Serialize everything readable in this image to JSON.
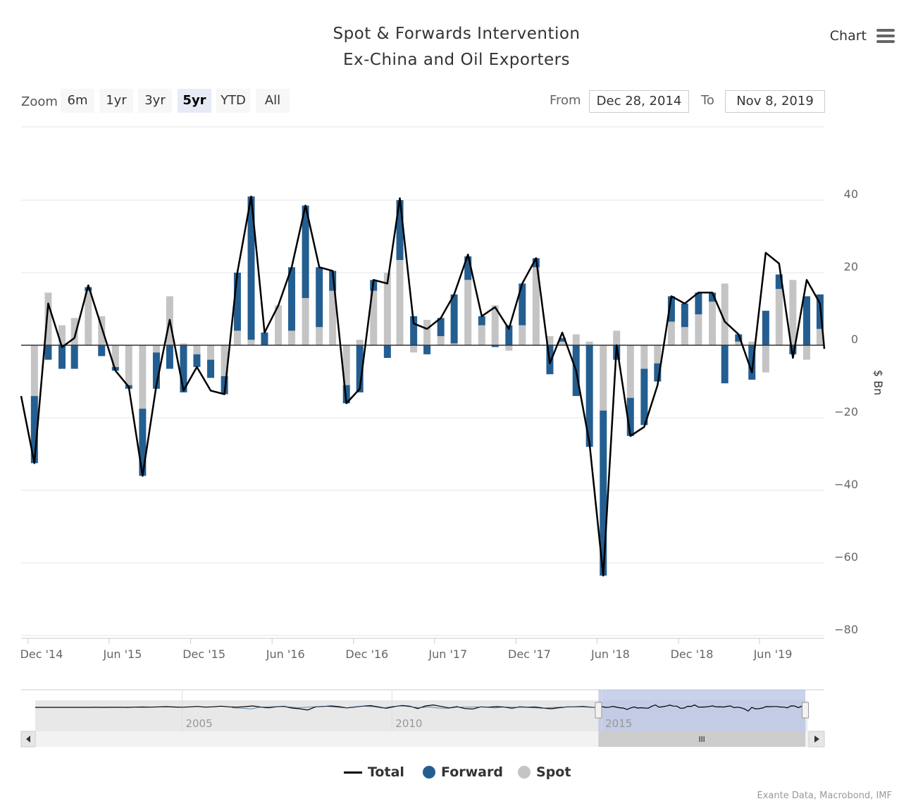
{
  "title": {
    "line1": "Spot & Forwards Intervention",
    "line2": "Ex-China and Oil Exporters"
  },
  "menu": {
    "label": "Chart",
    "icon": "hamburger-menu-icon"
  },
  "range_selector": {
    "zoom_label": "Zoom",
    "buttons": [
      "6m",
      "1yr",
      "3yr",
      "5yr",
      "YTD",
      "All"
    ],
    "selected": "5yr",
    "from_label": "From",
    "from_value": "Dec 28, 2014",
    "to_label": "To",
    "to_value": "Nov 8, 2019"
  },
  "legend": {
    "total": "Total",
    "forward": "Forward",
    "spot": "Spot"
  },
  "credits": "Exante Data, Macrobond, IMF",
  "colors": {
    "forward": "#245e91",
    "spot": "#c4c4c4",
    "total": "#000000",
    "navigator_mask": "#b7c2e4",
    "zoom_selected": "#e6ebf5"
  },
  "chart_data": {
    "type": "bar",
    "stacking": "stacked",
    "y_axis": {
      "title": "$ Bn",
      "ticks": [
        40,
        20,
        0,
        -20,
        -40,
        -60,
        -80
      ],
      "tick_labels": [
        "40",
        "20",
        "0",
        "−20",
        "−40",
        "−60",
        "−80"
      ],
      "range": [
        -80,
        41
      ],
      "position": "right",
      "grid": true
    },
    "x_axis": {
      "range": [
        "2014-11-01",
        "2019-10-31"
      ],
      "ticks": [
        {
          "date": "2014-12-01",
          "label": "Dec '14"
        },
        {
          "date": "2015-06-01",
          "label": "Jun '15"
        },
        {
          "date": "2015-12-01",
          "label": "Dec '15"
        },
        {
          "date": "2016-06-01",
          "label": "Jun '16"
        },
        {
          "date": "2016-12-01",
          "label": "Dec '16"
        },
        {
          "date": "2017-06-01",
          "label": "Jun '17"
        },
        {
          "date": "2017-12-01",
          "label": "Dec '17"
        },
        {
          "date": "2018-06-01",
          "label": "Jun '18"
        },
        {
          "date": "2018-12-01",
          "label": "Dec '18"
        },
        {
          "date": "2019-06-01",
          "label": "Jun '19"
        }
      ]
    },
    "categories": [
      "2014-12",
      "2015-01",
      "2015-02",
      "2015-03",
      "2015-04",
      "2015-05",
      "2015-06",
      "2015-07",
      "2015-08",
      "2015-09",
      "2015-10",
      "2015-11",
      "2015-12",
      "2016-01",
      "2016-02",
      "2016-03",
      "2016-04",
      "2016-05",
      "2016-06",
      "2016-07",
      "2016-08",
      "2016-09",
      "2016-10",
      "2016-11",
      "2016-12",
      "2017-01",
      "2017-02",
      "2017-03",
      "2017-04",
      "2017-05",
      "2017-06",
      "2017-07",
      "2017-08",
      "2017-09",
      "2017-10",
      "2017-11",
      "2017-12",
      "2018-01",
      "2018-02",
      "2018-03",
      "2018-04",
      "2018-05",
      "2018-06",
      "2018-07",
      "2018-08",
      "2018-09",
      "2018-10",
      "2018-11",
      "2018-12",
      "2019-01",
      "2019-02",
      "2019-03",
      "2019-04",
      "2019-05",
      "2019-06",
      "2019-07",
      "2019-08",
      "2019-09",
      "2019-10"
    ],
    "series": [
      {
        "name": "Spot",
        "values": [
          -14,
          14.5,
          5.5,
          7.5,
          15,
          8,
          -6,
          -11,
          -17.5,
          -2,
          13.5,
          0.5,
          -2.5,
          -4,
          -8.5,
          4,
          1.5,
          0,
          11,
          4,
          13,
          5,
          15,
          -11,
          1.5,
          15,
          20,
          23.5,
          -2,
          7,
          2.5,
          0.5,
          18,
          5.5,
          11,
          -1.5,
          5.5,
          21.5,
          2.5,
          1,
          3,
          1,
          -18,
          4,
          -14.5,
          -6.5,
          -5,
          6.5,
          5,
          8.5,
          12,
          17,
          1,
          1,
          -7.5,
          15.5,
          18,
          -4,
          4.5
        ],
        "spot_vs_forward": "spot"
      },
      {
        "name": "Forward",
        "values": [
          -18.5,
          -4,
          -6.5,
          -6.5,
          1,
          -3,
          -1,
          -1,
          -18.5,
          -10,
          -6.5,
          -13,
          -3.5,
          -5,
          -5,
          16,
          39.5,
          3.5,
          0,
          17.5,
          25.5,
          16.5,
          5.5,
          -5,
          -13,
          3,
          -3.5,
          16.5,
          8,
          -2.5,
          5,
          13.5,
          6.5,
          2.5,
          -0.5,
          5.5,
          11.5,
          2.5,
          -8,
          1,
          -14,
          -28,
          -45.5,
          -4,
          -10.5,
          -15.5,
          -5,
          7,
          6.5,
          6,
          2.5,
          -10.5,
          2,
          -9.5,
          9.5,
          4,
          -2.5,
          13.5,
          9.5
        ]
      },
      {
        "name": "Total",
        "values": [
          -32.5,
          11.5,
          -0.5,
          2,
          16.5,
          5,
          -7,
          -11.5,
          -36,
          -11,
          7,
          -12.5,
          -6,
          -12.5,
          -13.5,
          20,
          41,
          3.5,
          11,
          21.5,
          38.5,
          21.5,
          20.5,
          -16,
          -12,
          18,
          17,
          40.5,
          6,
          4.5,
          7.5,
          14,
          25,
          8,
          10.5,
          4.5,
          17,
          24,
          -5,
          3.5,
          -7,
          -27,
          -63.5,
          0,
          -25,
          -22.5,
          -11,
          13.5,
          11.5,
          14.5,
          14.5,
          6.5,
          3,
          -7.5,
          25.5,
          22.5,
          -3.5,
          18,
          11.5
        ]
      }
    ],
    "navigator": {
      "tick_labels": [
        "2005",
        "2010",
        "2015"
      ],
      "tick_years": [
        2005,
        2010,
        2015
      ],
      "range_years": [
        2001.5,
        2019.9
      ],
      "selected_years": [
        2014.92,
        2019.85
      ]
    }
  }
}
